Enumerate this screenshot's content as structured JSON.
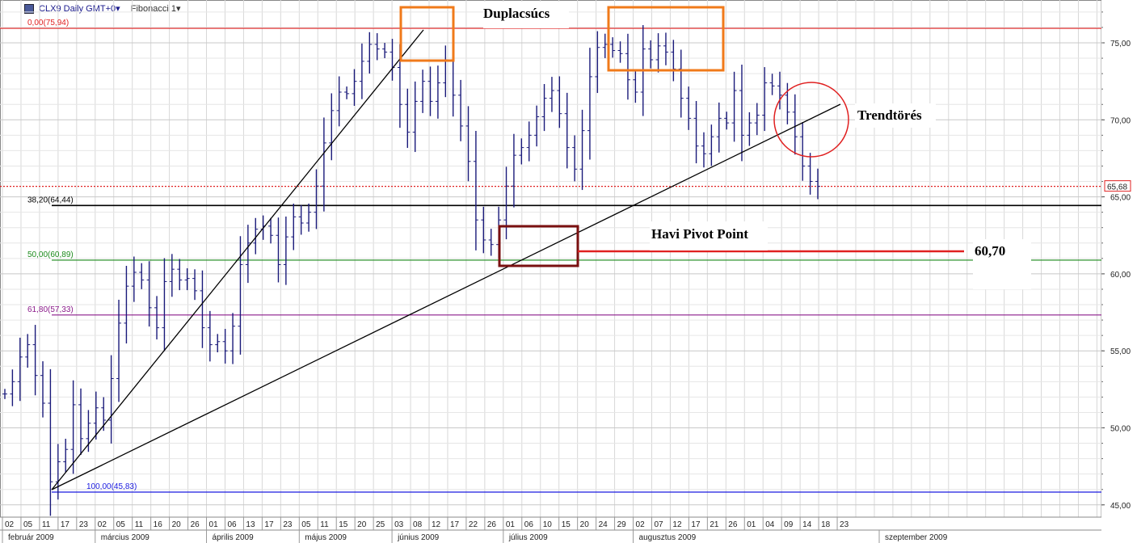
{
  "header": {
    "symbol_label": "CLX9 Daily GMT+0",
    "study_label": "Fibonacci 1"
  },
  "chart_data": {
    "type": "ohlc",
    "ylim": [
      44.5,
      77.5
    ],
    "y_ticks": [
      "45,00",
      "50,00",
      "55,00",
      "60,00",
      "65,00",
      "70,00",
      "75,00"
    ],
    "last_price": "65,68",
    "x_day_labels": [
      "02",
      "05",
      "11",
      "17",
      "23",
      "02",
      "05",
      "11",
      "16",
      "20",
      "26",
      "01",
      "06",
      "13",
      "17",
      "23",
      "05",
      "11",
      "15",
      "20",
      "25",
      "03",
      "08",
      "12",
      "17",
      "22",
      "26",
      "01",
      "06",
      "10",
      "15",
      "20",
      "24",
      "29",
      "02",
      "07",
      "12",
      "17",
      "21",
      "26",
      "01",
      "04",
      "09",
      "14",
      "18",
      "23"
    ],
    "x_month_labels": [
      "február 2009",
      "március 2009",
      "április 2009",
      "május 2009",
      "június 2009",
      "július 2009",
      "augusztus 2009",
      "szeptember 2009"
    ],
    "fib_levels": [
      {
        "label": "0,00(75,94)",
        "value": 75.94,
        "color": "#e02020"
      },
      {
        "label": "38,20(64,44)",
        "value": 64.44,
        "color": "#000000"
      },
      {
        "label": "50,00(60,89)",
        "value": 60.89,
        "color": "#1a8a1a"
      },
      {
        "label": "61,80(57,33)",
        "value": 57.33,
        "color": "#8a1a8a"
      },
      {
        "label": "100,00(45,83)",
        "value": 45.83,
        "color": "#1a1ae0"
      }
    ],
    "annotations": {
      "double_top": "Duplacsúcs",
      "trend_break": "Trendtörés",
      "pivot": "Havi Pivot Point",
      "pivot_value": "60,70"
    },
    "closes": [
      52.2,
      53.0,
      54.6,
      55.4,
      53.4,
      51.6,
      46.5,
      47.8,
      48.6,
      51.5,
      49.3,
      50.3,
      51.3,
      50.5,
      53.2,
      56.8,
      59.2,
      60.1,
      59.6,
      57.8,
      56.5,
      59.5,
      60.3,
      59.6,
      59.7,
      58.9,
      56.5,
      55.4,
      55.6,
      55.0,
      56.6,
      60.6,
      62.0,
      62.9,
      63.1,
      62.5,
      60.6,
      62.4,
      63.7,
      63.3,
      64.0,
      65.7,
      68.5,
      70.6,
      71.8,
      71.7,
      72.5,
      73.8,
      74.9,
      74.6,
      74.4,
      73.4,
      71.0,
      69.2,
      71.2,
      72.5,
      71.2,
      72.4,
      73.9,
      71.6,
      69.6,
      67.3,
      63.5,
      62.2,
      61.9,
      63.5,
      65.7,
      67.7,
      68.2,
      69.0,
      70.2,
      71.4,
      71.9,
      70.4,
      68.2,
      66.8,
      69.3,
      72.8,
      74.7,
      74.9,
      74.5,
      74.3,
      72.6,
      71.8,
      74.6,
      73.9,
      74.8,
      74.4,
      73.3,
      71.4,
      70.1,
      68.3,
      67.8,
      68.9,
      70.1,
      69.8,
      71.9,
      69.0,
      69.8,
      70.3,
      72.4,
      72.2,
      71.6,
      70.5,
      68.9,
      67.0,
      66.0,
      65.68
    ]
  }
}
